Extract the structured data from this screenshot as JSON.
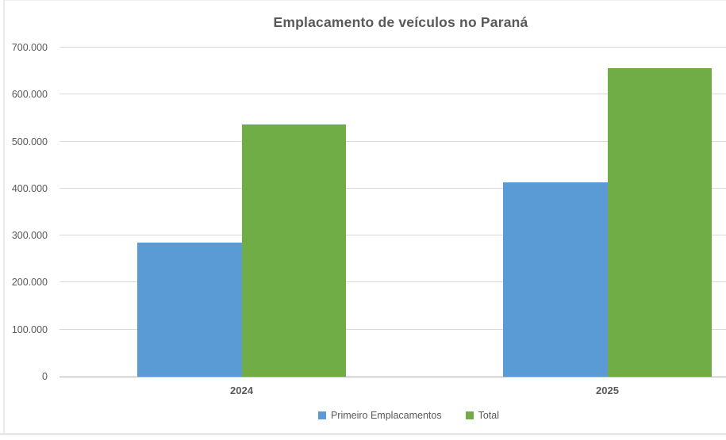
{
  "chart_data": {
    "type": "bar",
    "title": "Emplacamento de veículos no Paraná",
    "categories": [
      "2024",
      "2025"
    ],
    "series": [
      {
        "name": "Primeiro Emplacamentos",
        "color": "#5B9BD5",
        "values": [
          285000,
          413000
        ]
      },
      {
        "name": "Total",
        "color": "#70AD47",
        "values": [
          536000,
          657000
        ]
      }
    ],
    "ylim": [
      0,
      700000
    ],
    "ytick_step": 100000,
    "ytick_labels": [
      "0",
      "100.000",
      "200.000",
      "300.000",
      "400.000",
      "500.000",
      "600.000",
      "700.000"
    ],
    "grid": "horizontal",
    "legend_position": "bottom",
    "colors": {
      "title_text": "#595959",
      "axis_text": "#595959",
      "gridline": "#D9D9D9",
      "axis_line": "#ADADAD"
    }
  }
}
